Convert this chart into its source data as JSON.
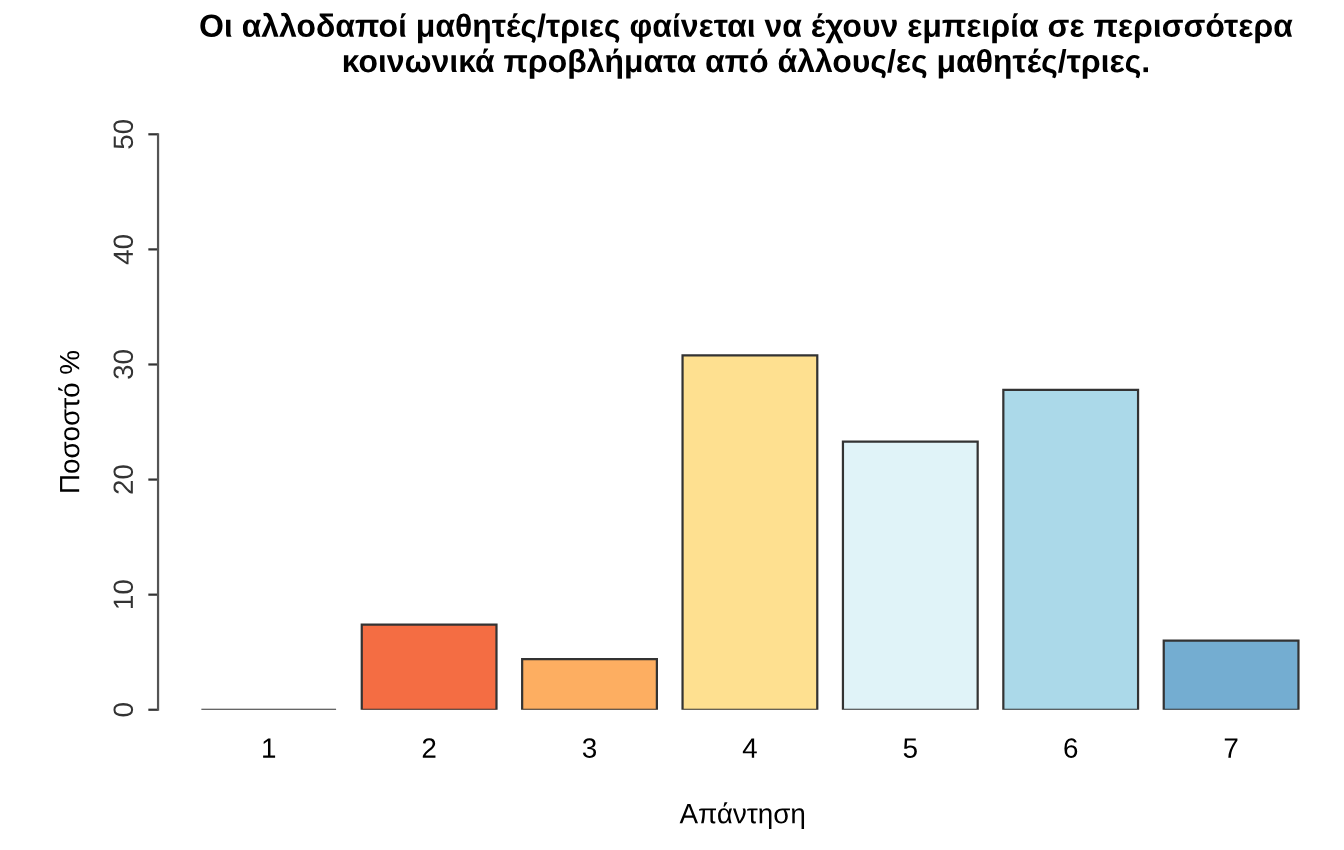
{
  "chart_data": {
    "type": "bar",
    "title": "Οι αλλοδαποί μαθητές/τριες φαίνεται να έχουν εμπειρία σε περισσότερα\nκοινωνικά προβλήματα από άλλους/ες μαθητές/τριες.",
    "xlabel": "Απάντηση",
    "ylabel": "Ποσοστό %",
    "categories": [
      "1",
      "2",
      "3",
      "4",
      "5",
      "6",
      "7"
    ],
    "values": [
      0,
      7.4,
      4.4,
      30.8,
      23.3,
      27.8,
      6.0
    ],
    "colors": [
      "#333333",
      "#f46d43",
      "#fdae61",
      "#fee090",
      "#e0f3f8",
      "#abd9e9",
      "#74add1"
    ],
    "ylim": [
      0,
      50
    ],
    "yticks": [
      0,
      10,
      20,
      30,
      40,
      50
    ],
    "grid": false,
    "legend": false
  }
}
